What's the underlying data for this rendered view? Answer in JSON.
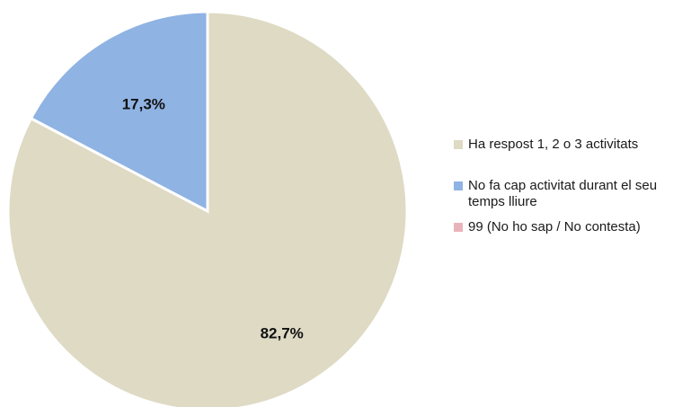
{
  "chart_data": {
    "type": "pie",
    "slices": [
      {
        "label": "Ha respost 1, 2 o 3 activitats",
        "value": 82.7,
        "display": "82,7%",
        "color": "#dedac4"
      },
      {
        "label": "No fa cap activitat durant el seu temps lliure",
        "value": 17.3,
        "display": "17,3%",
        "color": "#8fb3e3"
      },
      {
        "label": "99 (No ho sap / No contesta)",
        "value": 0,
        "display": "",
        "color": "#e9b4b9"
      }
    ],
    "legend_position": "right"
  }
}
